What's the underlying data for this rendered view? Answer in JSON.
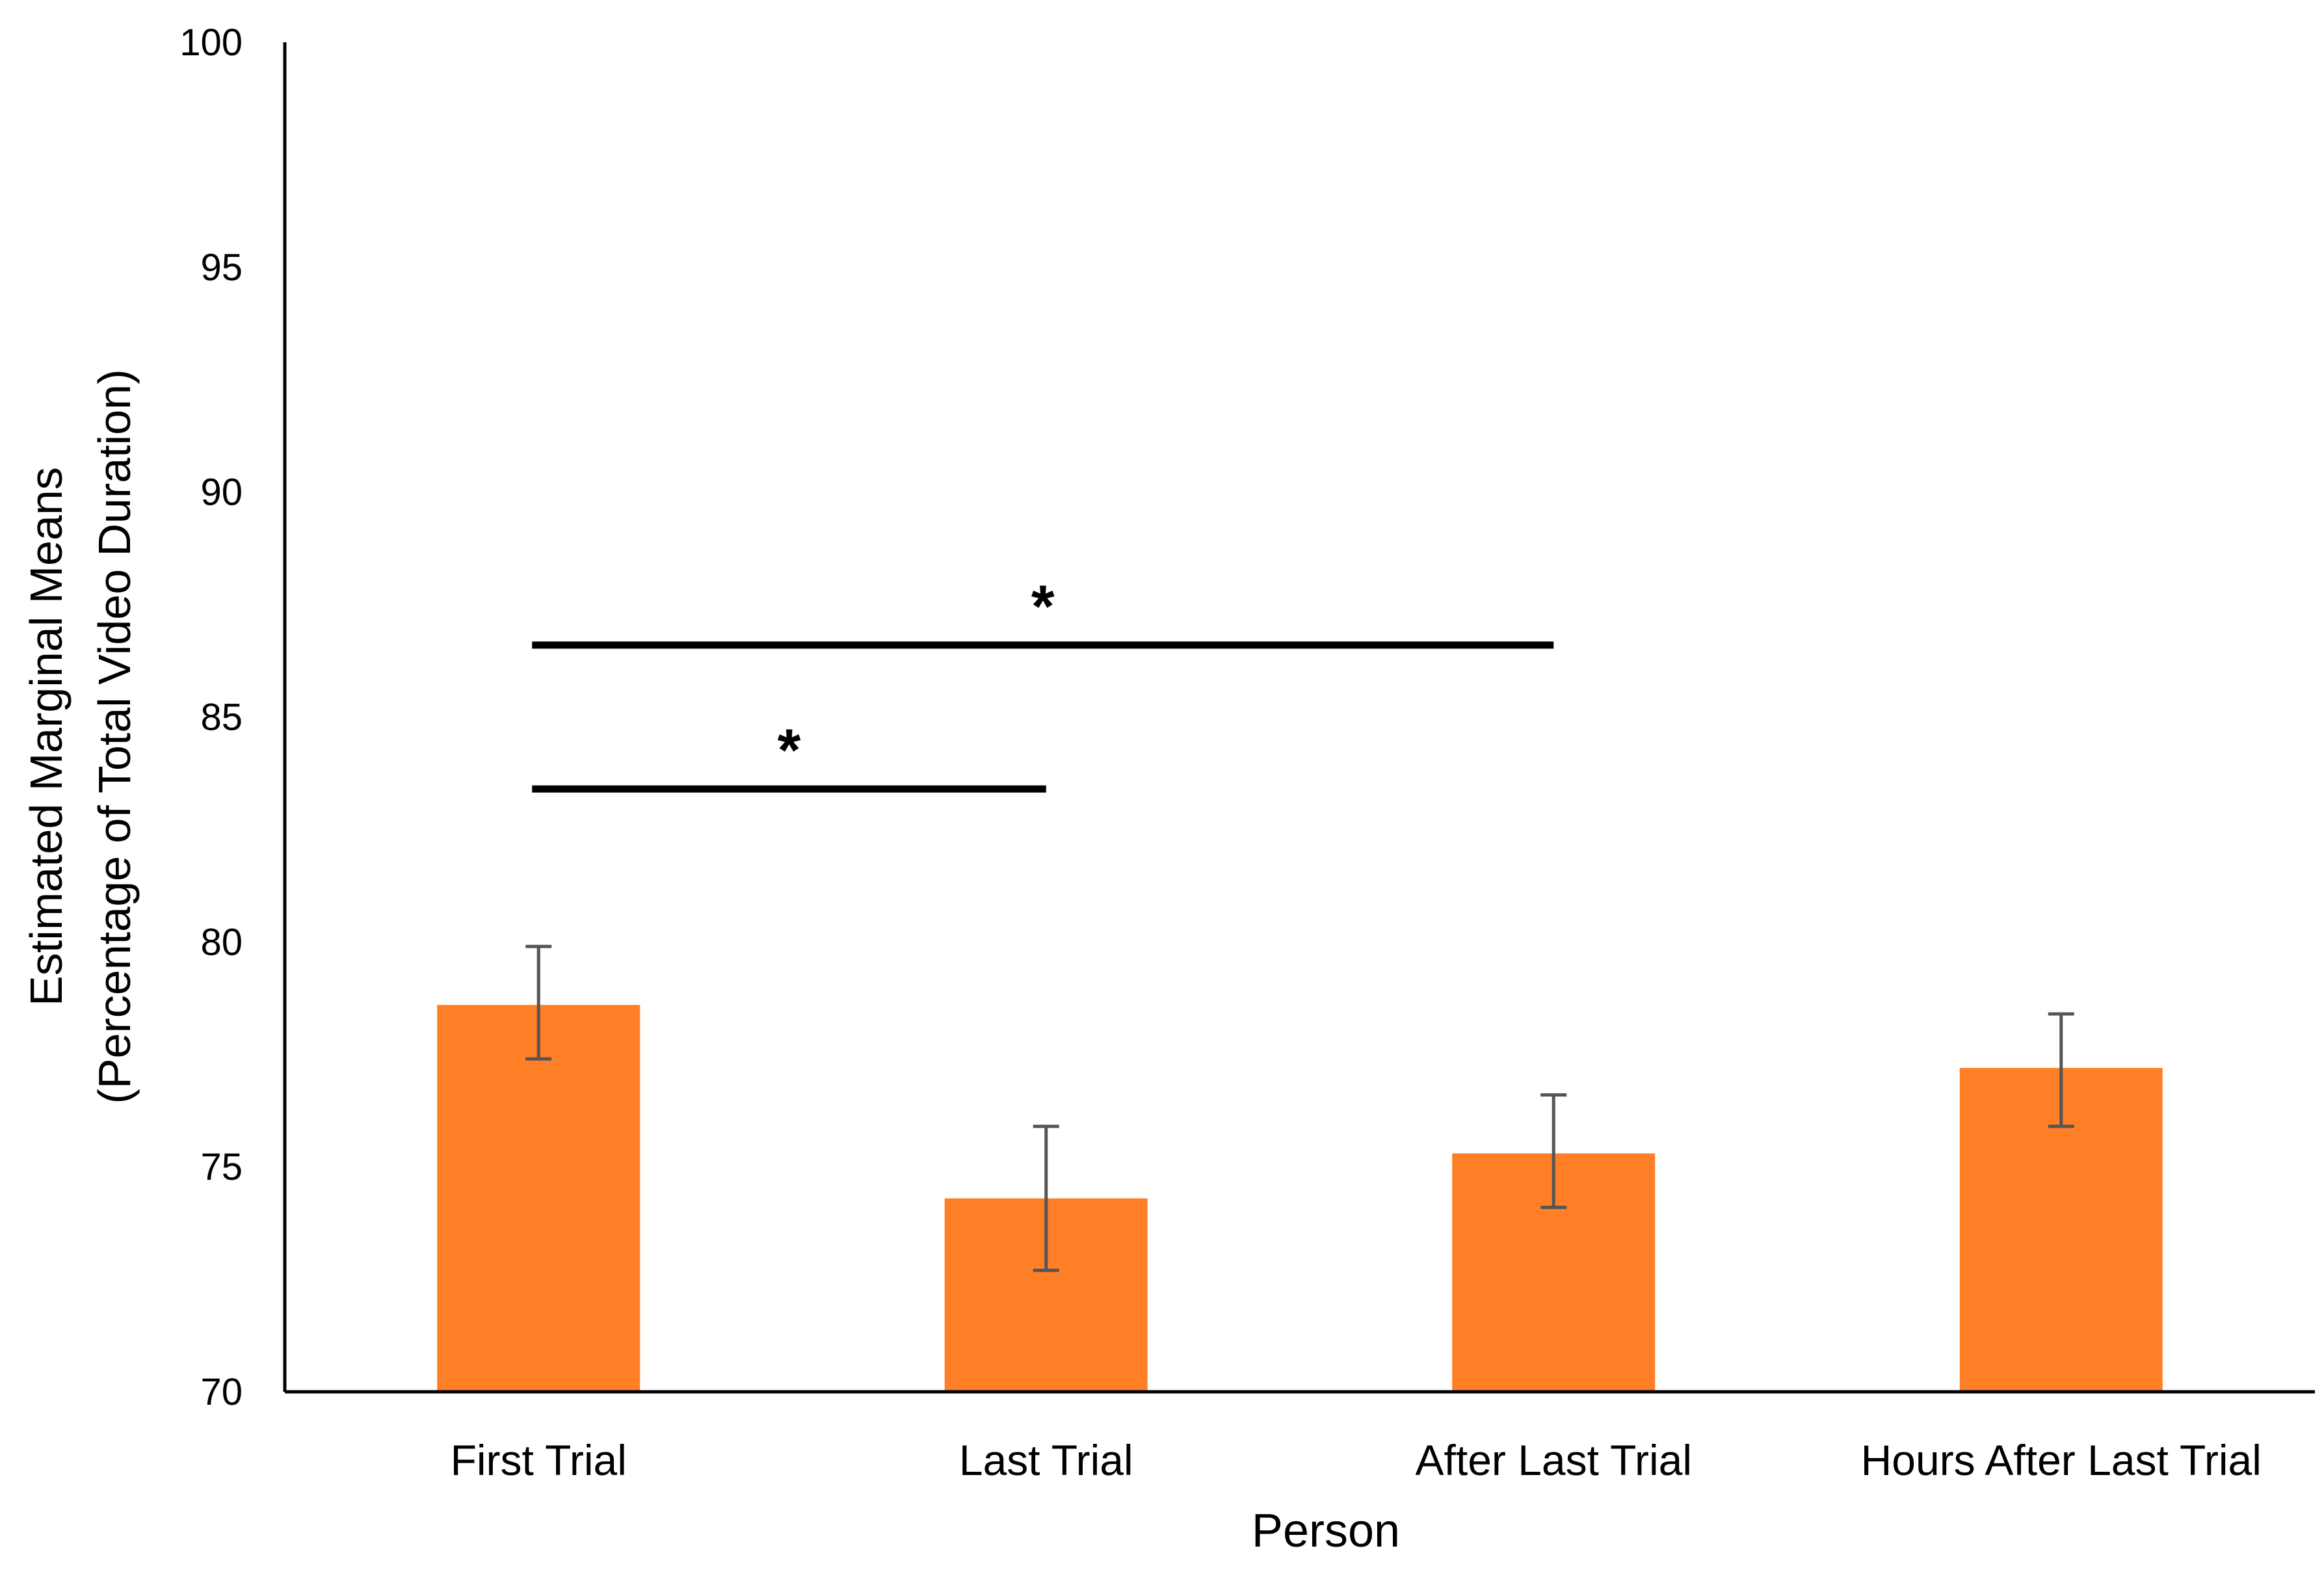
{
  "chart_data": {
    "type": "bar",
    "title": "",
    "xlabel": "Person",
    "ylabel_lines": [
      "Estimated Marginal Means",
      "(Percentage of Total Video Duration)"
    ],
    "categories": [
      "First Trial",
      "Last Trial",
      "After Last Trial",
      "Hours After Last Trial"
    ],
    "values": [
      78.6,
      74.3,
      75.3,
      77.2
    ],
    "error_low": [
      77.4,
      72.7,
      74.1,
      75.9
    ],
    "error_high": [
      79.9,
      75.9,
      76.6,
      78.4
    ],
    "ylim": [
      70,
      100
    ],
    "yticks": [
      70,
      75,
      80,
      85,
      90,
      95,
      100
    ],
    "ytick_labels": [
      "70",
      "75",
      "80",
      "85",
      "90",
      "95",
      "100"
    ],
    "grid": false,
    "bar_color": "#FF7F27",
    "error_bar_color": "#555555",
    "significance": [
      {
        "from_category": 0,
        "to_category": 1,
        "y_value": 83.4,
        "label": "*"
      },
      {
        "from_category": 0,
        "to_category": 2,
        "y_value": 86.6,
        "label": "*"
      }
    ]
  }
}
